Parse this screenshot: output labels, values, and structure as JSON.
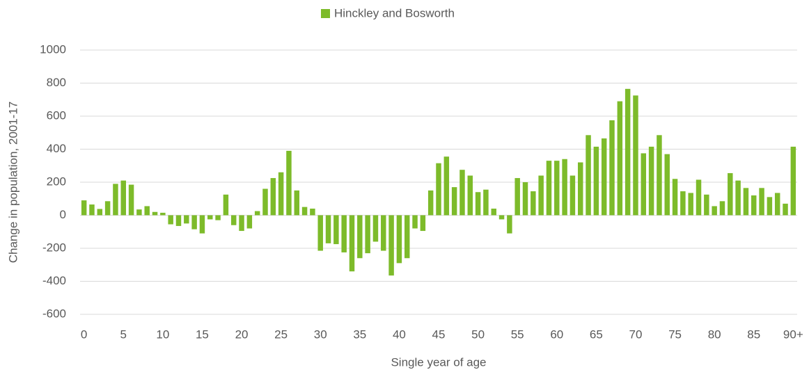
{
  "chart_data": {
    "type": "bar",
    "xlabel": "Single year of age",
    "ylabel": "Change in population, 2001-17",
    "categories": [
      "0",
      null,
      null,
      null,
      null,
      "5",
      null,
      null,
      null,
      null,
      "10",
      null,
      null,
      null,
      null,
      "15",
      null,
      null,
      null,
      null,
      "20",
      null,
      null,
      null,
      null,
      "25",
      null,
      null,
      null,
      null,
      "30",
      null,
      null,
      null,
      null,
      "35",
      null,
      null,
      null,
      null,
      "40",
      null,
      null,
      null,
      null,
      "45",
      null,
      null,
      null,
      null,
      "50",
      null,
      null,
      null,
      null,
      "55",
      null,
      null,
      null,
      null,
      "60",
      null,
      null,
      null,
      null,
      "65",
      null,
      null,
      null,
      null,
      "70",
      null,
      null,
      null,
      null,
      "75",
      null,
      null,
      null,
      null,
      "80",
      null,
      null,
      null,
      null,
      "85",
      null,
      null,
      null,
      null,
      "90+"
    ],
    "series": [
      {
        "name": "Hinckley and Bosworth",
        "color": "#7dbb2a",
        "values": [
          90,
          65,
          38,
          85,
          190,
          210,
          185,
          35,
          55,
          20,
          15,
          -55,
          -65,
          -50,
          -85,
          -110,
          -25,
          -30,
          125,
          -60,
          -95,
          -80,
          25,
          160,
          225,
          260,
          390,
          150,
          50,
          40,
          -215,
          -170,
          -175,
          -225,
          -340,
          -260,
          -230,
          -160,
          -215,
          -365,
          -290,
          -260,
          -80,
          -95,
          150,
          315,
          355,
          170,
          275,
          240,
          140,
          155,
          40,
          -25,
          -110,
          225,
          200,
          145,
          240,
          330,
          330,
          340,
          240,
          320,
          485,
          415,
          465,
          575,
          690,
          765,
          725,
          375,
          415,
          485,
          370,
          220,
          145,
          135,
          215,
          125,
          55,
          85,
          255,
          210,
          165,
          120,
          165,
          110,
          135,
          70,
          415
        ]
      }
    ],
    "ylim": [
      -600,
      1000
    ],
    "yticks": [
      -600,
      -400,
      -200,
      0,
      200,
      400,
      600,
      800,
      1000
    ],
    "grid": true,
    "legend": "top"
  }
}
